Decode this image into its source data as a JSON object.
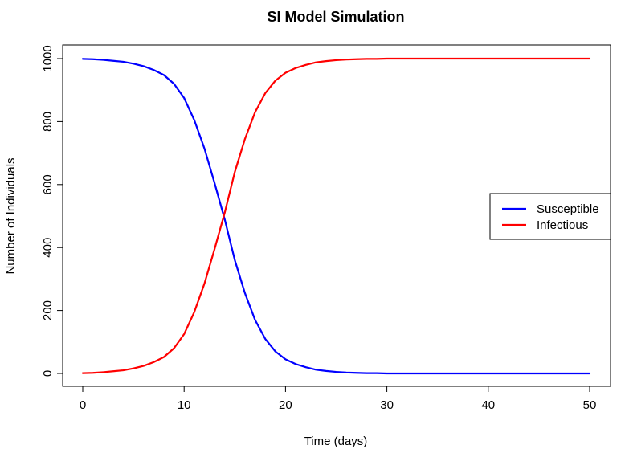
{
  "chart_data": {
    "type": "line",
    "title": "SI Model Simulation",
    "xlabel": "Time (days)",
    "ylabel": "Number of Individuals",
    "xlim": [
      0,
      50
    ],
    "ylim": [
      0,
      1000
    ],
    "x_ticks": [
      "0",
      "10",
      "20",
      "30",
      "40",
      "50"
    ],
    "y_ticks": [
      "0",
      "200",
      "400",
      "600",
      "800",
      "1000"
    ],
    "grid": false,
    "legend_position": "right",
    "x": [
      0,
      1,
      2,
      3,
      4,
      5,
      6,
      7,
      8,
      9,
      10,
      11,
      12,
      13,
      14,
      15,
      16,
      17,
      18,
      19,
      20,
      21,
      22,
      23,
      24,
      25,
      26,
      27,
      28,
      29,
      30,
      31,
      32,
      33,
      34,
      35,
      36,
      37,
      38,
      39,
      40,
      41,
      42,
      43,
      44,
      45,
      46,
      47,
      48,
      49,
      50
    ],
    "series": [
      {
        "name": "Susceptible",
        "color": "#0000ff",
        "values": [
          999,
          998,
          996,
          993,
          990,
          984,
          976,
          964,
          948,
          920,
          875,
          805,
          715,
          605,
          490,
          360,
          255,
          170,
          110,
          70,
          45,
          30,
          20,
          12,
          8,
          5,
          3,
          2,
          1,
          1,
          0,
          0,
          0,
          0,
          0,
          0,
          0,
          0,
          0,
          0,
          0,
          0,
          0,
          0,
          0,
          0,
          0,
          0,
          0,
          0,
          0
        ]
      },
      {
        "name": "Infectious",
        "color": "#ff0000",
        "values": [
          1,
          2,
          4,
          7,
          10,
          16,
          24,
          36,
          52,
          80,
          125,
          195,
          285,
          395,
          510,
          640,
          745,
          830,
          890,
          930,
          955,
          970,
          980,
          988,
          992,
          995,
          997,
          998,
          999,
          999,
          1000,
          1000,
          1000,
          1000,
          1000,
          1000,
          1000,
          1000,
          1000,
          1000,
          1000,
          1000,
          1000,
          1000,
          1000,
          1000,
          1000,
          1000,
          1000,
          1000,
          1000
        ]
      }
    ]
  }
}
